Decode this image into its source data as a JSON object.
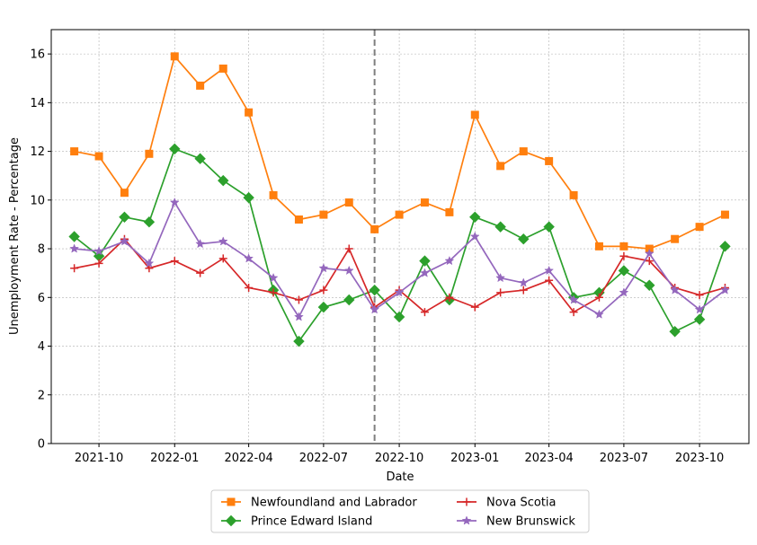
{
  "chart_data": {
    "type": "line",
    "xlabel": "Date",
    "ylabel": "Unemployment Rate - Percentage",
    "ylim": [
      0,
      17
    ],
    "yticks": [
      0,
      2,
      4,
      6,
      8,
      10,
      12,
      14,
      16
    ],
    "xlim": [
      "2021-08-04",
      "2023-11-30"
    ],
    "xticks": [
      "2021-10",
      "2022-01",
      "2022-04",
      "2022-07",
      "2022-10",
      "2023-01",
      "2023-04",
      "2023-07",
      "2023-10"
    ],
    "grid": true,
    "legend_position": "bottom-center",
    "x": [
      "2021-09",
      "2021-10",
      "2021-11",
      "2021-12",
      "2022-01",
      "2022-02",
      "2022-03",
      "2022-04",
      "2022-05",
      "2022-06",
      "2022-07",
      "2022-08",
      "2022-09",
      "2022-10",
      "2022-11",
      "2022-12",
      "2023-01",
      "2023-02",
      "2023-03",
      "2023-04",
      "2023-05",
      "2023-06",
      "2023-07",
      "2023-08",
      "2023-09",
      "2023-10",
      "2023-11"
    ],
    "vline": "2022-09",
    "series": [
      {
        "name": "Newfoundland and Labrador",
        "color": "#ff7f0e",
        "marker": "square",
        "values": [
          12.0,
          11.8,
          10.3,
          11.9,
          15.9,
          14.7,
          15.4,
          13.6,
          10.2,
          9.2,
          9.4,
          9.9,
          8.8,
          9.4,
          9.9,
          9.5,
          13.5,
          11.4,
          12.0,
          11.6,
          10.2,
          8.1,
          8.1,
          8.0,
          8.4,
          8.9,
          9.4
        ]
      },
      {
        "name": "Prince Edward Island",
        "color": "#2ca02c",
        "marker": "diamond",
        "values": [
          8.5,
          7.7,
          9.3,
          9.1,
          12.1,
          11.7,
          10.8,
          10.1,
          6.3,
          4.2,
          5.6,
          5.9,
          6.3,
          5.2,
          7.5,
          5.9,
          9.3,
          8.9,
          8.4,
          8.9,
          6.0,
          6.2,
          7.1,
          6.5,
          4.6,
          5.1,
          8.1
        ]
      },
      {
        "name": "Nova Scotia",
        "color": "#d62728",
        "marker": "plus",
        "values": [
          7.2,
          7.4,
          8.4,
          7.2,
          7.5,
          7.0,
          7.6,
          6.4,
          6.2,
          5.9,
          6.3,
          8.0,
          5.6,
          6.3,
          5.4,
          6.0,
          5.6,
          6.2,
          6.3,
          6.7,
          5.4,
          6.0,
          7.7,
          7.5,
          6.4,
          6.1,
          6.4
        ]
      },
      {
        "name": "New Brunswick",
        "color": "#9467bd",
        "marker": "star",
        "values": [
          8.0,
          7.9,
          8.3,
          7.4,
          9.9,
          8.2,
          8.3,
          7.6,
          6.8,
          5.2,
          7.2,
          7.1,
          5.5,
          6.2,
          7.0,
          7.5,
          8.5,
          6.8,
          6.6,
          7.1,
          5.9,
          5.3,
          6.2,
          7.8,
          6.3,
          5.5,
          6.3
        ]
      }
    ]
  }
}
